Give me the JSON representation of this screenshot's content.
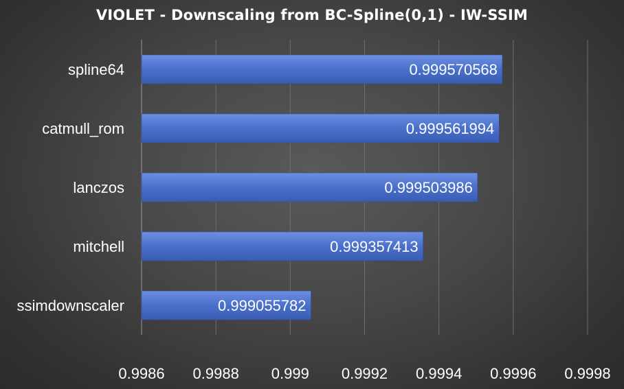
{
  "chart_data": {
    "type": "bar",
    "orientation": "horizontal",
    "title": "VIOLET - Downscaling from BC-Spline(0,1) - IW-SSIM",
    "categories": [
      "spline64",
      "catmull_rom",
      "lanczos",
      "mitchell",
      "ssimdownscaler"
    ],
    "values": [
      0.999570568,
      0.999561994,
      0.999503986,
      0.999357413,
      0.999055782
    ],
    "data_labels": [
      "0.999570568",
      "0.999561994",
      "0.999503986",
      "0.999357413",
      "0.999055782"
    ],
    "xlim": [
      0.9986,
      0.9998
    ],
    "xticks": [
      0.9986,
      0.9988,
      0.999,
      0.9992,
      0.9994,
      0.9996,
      0.9998
    ],
    "xtick_labels": [
      "0.9986",
      "0.9988",
      "0.999",
      "0.9992",
      "0.9994",
      "0.9996",
      "0.9998"
    ],
    "xlabel": "",
    "ylabel": "",
    "grid": true,
    "legend": "none",
    "colors": {
      "bar_top": "#6d8fe0",
      "bar_mid": "#4a70cc",
      "bar_bottom": "#3a5cb2",
      "text": "#ffffff",
      "grid": "#6e6e6e"
    }
  }
}
